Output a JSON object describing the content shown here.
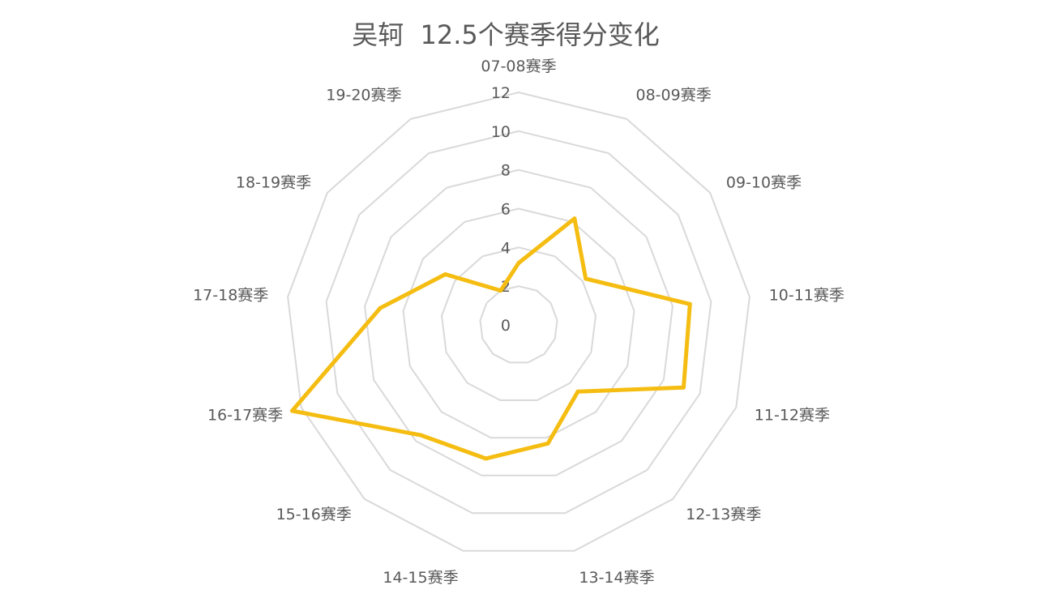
{
  "chart_data": {
    "type": "radar",
    "title": "吴轲  12.5个赛季得分变化",
    "categories": [
      "07-08赛季",
      "08-09赛季",
      "09-10赛季",
      "10-11赛季",
      "11-12赛季",
      "12-13赛季",
      "13-14赛季",
      "14-15赛季",
      "15-16赛季",
      "16-17赛季",
      "17-18赛季",
      "18-19赛季",
      "19-20赛季"
    ],
    "series": [
      {
        "values": [
          3.2,
          6.2,
          4.2,
          8.9,
          9.1,
          4.6,
          6.3,
          7.1,
          7.6,
          12.5,
          7.2,
          4.6,
          2.0
        ]
      }
    ],
    "rlim": [
      0,
      12
    ],
    "ticks": [
      0,
      2,
      4,
      6,
      8,
      10,
      12
    ],
    "grid": true,
    "legend": "none",
    "line_color": "#F5BD12",
    "grid_color": "#D9D9D9",
    "text_color": "#595959"
  }
}
